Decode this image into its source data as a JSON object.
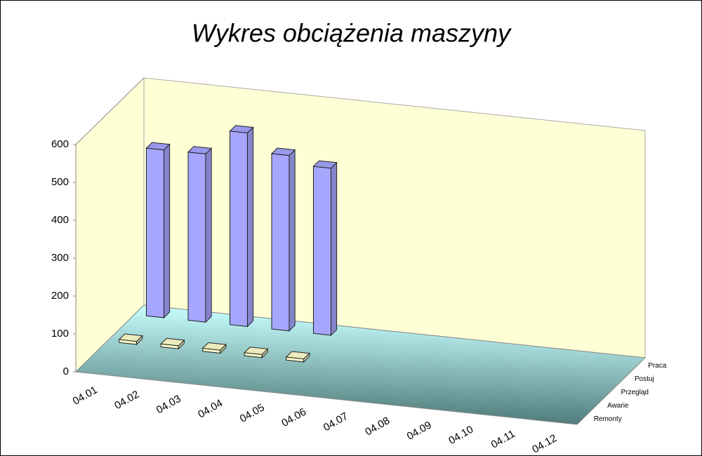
{
  "chart_data": {
    "type": "bar3d",
    "title": "Wykres obciążenia maszyny",
    "categories": [
      "04.01",
      "04.02",
      "04.03",
      "04.04",
      "04.05",
      "04.06",
      "04.07",
      "04.08",
      "04.09",
      "04.10",
      "04.11",
      "04.12"
    ],
    "series": [
      {
        "name": "Remonty",
        "values": [
          null,
          null,
          null,
          null,
          null,
          null,
          null,
          null,
          null,
          null,
          null,
          null
        ]
      },
      {
        "name": "Awarie",
        "values": [
          null,
          null,
          null,
          null,
          null,
          null,
          null,
          null,
          null,
          null,
          null,
          null
        ]
      },
      {
        "name": "Przegląd",
        "color": "#ffffcc",
        "values": [
          8,
          8,
          8,
          8,
          8,
          null,
          null,
          null,
          null,
          null,
          null,
          null
        ]
      },
      {
        "name": "Postuj",
        "values": [
          null,
          null,
          null,
          null,
          null,
          null,
          null,
          null,
          null,
          null,
          null,
          null
        ]
      },
      {
        "name": "Praca",
        "color": "#a6a6ff",
        "values": [
          443,
          444,
          511,
          463,
          441,
          null,
          null,
          null,
          null,
          null,
          null,
          null
        ]
      }
    ],
    "ylim": [
      0,
      600
    ],
    "yticks": [
      0,
      100,
      200,
      300,
      400,
      500,
      600
    ]
  }
}
